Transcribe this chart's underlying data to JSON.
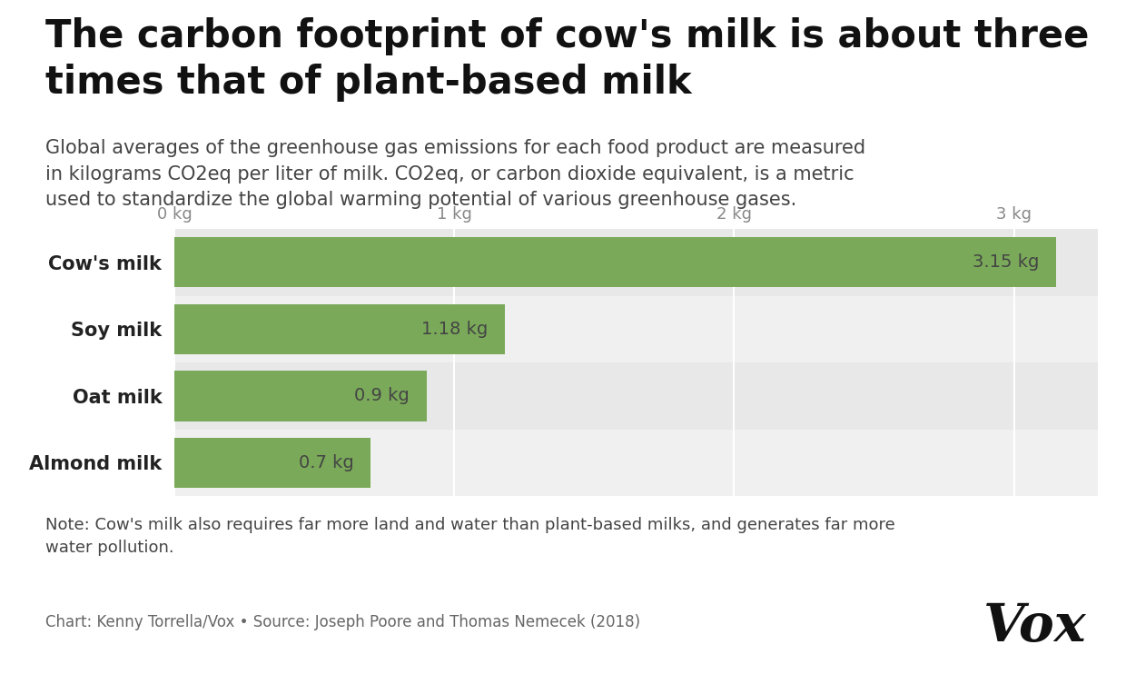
{
  "title_line1": "The carbon footprint of cow's milk is about three",
  "title_line2": "times that of plant-based milk",
  "subtitle": "Global averages of the greenhouse gas emissions for each food product are measured\nin kilograms CO2eq per liter of milk. CO2eq, or carbon dioxide equivalent, is a metric\nused to standardize the global warming potential of various greenhouse gases.",
  "categories": [
    "Cow's milk",
    "Soy milk",
    "Oat milk",
    "Almond milk"
  ],
  "values": [
    3.15,
    1.18,
    0.9,
    0.7
  ],
  "labels": [
    "3.15 kg",
    "1.18 kg",
    "0.9 kg",
    "0.7 kg"
  ],
  "bar_color": "#7aaa59",
  "row_colors": [
    "#e8e8e8",
    "#f0f0f0",
    "#e8e8e8",
    "#f0f0f0"
  ],
  "xlim": [
    0,
    3.3
  ],
  "xticks": [
    0,
    1,
    2,
    3
  ],
  "xtick_labels": [
    "0 kg",
    "1 kg",
    "2 kg",
    "3 kg"
  ],
  "note": "Note: Cow's milk also requires far more land and water than plant-based milks, and generates far more\nwater pollution.",
  "source": "Chart: Kenny Torrella/Vox • Source: Joseph Poore and Thomas Nemecek (2018)",
  "vox_logo": "Vox",
  "title_fontsize": 30,
  "subtitle_fontsize": 15,
  "label_fontsize": 14,
  "category_fontsize": 15,
  "tick_fontsize": 13,
  "note_fontsize": 13,
  "source_fontsize": 12,
  "vox_fontsize": 42
}
